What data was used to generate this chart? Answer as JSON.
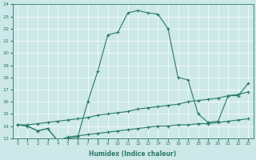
{
  "xlabel": "Humidex (Indice chaleur)",
  "xlim": [
    -0.5,
    23.5
  ],
  "ylim": [
    13,
    24
  ],
  "yticks": [
    13,
    14,
    15,
    16,
    17,
    18,
    19,
    20,
    21,
    22,
    23,
    24
  ],
  "xticks": [
    0,
    1,
    2,
    3,
    4,
    5,
    6,
    7,
    8,
    9,
    10,
    11,
    12,
    13,
    14,
    15,
    16,
    17,
    18,
    19,
    20,
    21,
    22,
    23
  ],
  "bg_color": "#cde8e8",
  "line_color": "#2a7a6a",
  "line1_x": [
    0,
    1,
    2,
    3,
    4,
    5,
    6,
    7,
    8,
    9,
    10,
    11,
    12,
    13,
    14,
    15,
    16,
    17,
    18,
    19,
    20,
    21,
    22,
    23
  ],
  "line1_y": [
    14.1,
    14.0,
    13.6,
    13.8,
    12.8,
    13.0,
    13.1,
    16.0,
    18.5,
    21.5,
    21.7,
    23.3,
    23.5,
    23.3,
    23.2,
    22.0,
    18.0,
    17.8,
    15.0,
    14.3,
    14.4,
    16.5,
    16.5,
    17.5
  ],
  "line2_x": [
    0,
    1,
    2,
    3,
    4,
    5,
    6,
    7,
    8,
    9,
    10,
    11,
    12,
    13,
    14,
    15,
    16,
    17,
    18,
    19,
    20,
    21,
    22,
    23
  ],
  "line2_y": [
    14.1,
    14.0,
    13.6,
    13.8,
    12.8,
    13.1,
    13.2,
    13.3,
    13.4,
    13.5,
    13.6,
    13.7,
    13.8,
    13.9,
    14.0,
    14.0,
    14.1,
    14.1,
    14.2,
    14.2,
    14.3,
    14.4,
    14.5,
    14.6
  ],
  "line3_x": [
    0,
    1,
    2,
    3,
    4,
    5,
    6,
    7,
    8,
    9,
    10,
    11,
    12,
    13,
    14,
    15,
    16,
    17,
    18,
    19,
    20,
    21,
    22,
    23
  ],
  "line3_y": [
    14.1,
    14.1,
    14.2,
    14.3,
    14.4,
    14.5,
    14.6,
    14.7,
    14.9,
    15.0,
    15.1,
    15.2,
    15.4,
    15.5,
    15.6,
    15.7,
    15.8,
    16.0,
    16.1,
    16.2,
    16.3,
    16.5,
    16.6,
    16.8
  ]
}
